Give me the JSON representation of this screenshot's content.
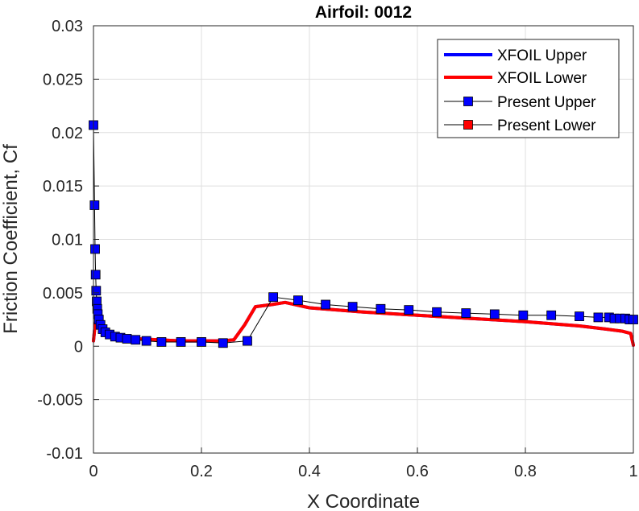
{
  "chart_data": {
    "type": "line",
    "title": "Airfoil: 0012",
    "xlabel": "X Coordinate",
    "ylabel": "Friction Coefficient, Cf",
    "xlim": [
      0,
      1
    ],
    "ylim": [
      -0.01,
      0.03
    ],
    "xticks": [
      0,
      0.2,
      0.4,
      0.6,
      0.8,
      1
    ],
    "xtick_labels": [
      "0",
      "0.2",
      "0.4",
      "0.6",
      "0.8",
      "1"
    ],
    "yticks": [
      -0.01,
      -0.005,
      0,
      0.005,
      0.01,
      0.015,
      0.02,
      0.025,
      0.03
    ],
    "ytick_labels": [
      "-0.01",
      "-0.005",
      "0",
      "0.005",
      "0.01",
      "0.015",
      "0.02",
      "0.025",
      "0.03"
    ],
    "grid": true,
    "legend_position": "top-right",
    "series": [
      {
        "name": "XFOIL Upper",
        "style": "line",
        "color": "#0000FF",
        "x": [
          0,
          0.002,
          0.005,
          0.008,
          0.012,
          0.02,
          0.03,
          0.05,
          0.08,
          0.12,
          0.16,
          0.2,
          0.24,
          0.26,
          0.28,
          0.3,
          0.33,
          0.355,
          0.4,
          0.5,
          0.6,
          0.7,
          0.8,
          0.9,
          0.95,
          0.98,
          0.995,
          1.0
        ],
        "y": [
          0.0005,
          0.0015,
          0.0025,
          0.0024,
          0.002,
          0.0015,
          0.0012,
          0.0009,
          0.0007,
          0.0006,
          0.0005,
          0.0005,
          0.0005,
          0.0006,
          0.002,
          0.0037,
          0.0039,
          0.0041,
          0.0036,
          0.0032,
          0.0029,
          0.0026,
          0.0023,
          0.0019,
          0.0016,
          0.0014,
          0.0012,
          0.0001
        ]
      },
      {
        "name": "XFOIL Lower",
        "style": "line",
        "color": "#FF0000",
        "x": [
          0,
          0.002,
          0.005,
          0.008,
          0.012,
          0.02,
          0.03,
          0.05,
          0.08,
          0.12,
          0.16,
          0.2,
          0.24,
          0.26,
          0.28,
          0.3,
          0.33,
          0.355,
          0.4,
          0.5,
          0.6,
          0.7,
          0.8,
          0.9,
          0.95,
          0.98,
          0.995,
          1.0
        ],
        "y": [
          0.0005,
          0.0015,
          0.0025,
          0.0024,
          0.002,
          0.0015,
          0.0012,
          0.0009,
          0.0007,
          0.0006,
          0.0005,
          0.0005,
          0.0005,
          0.0006,
          0.002,
          0.0037,
          0.0039,
          0.0041,
          0.0036,
          0.0032,
          0.0029,
          0.0026,
          0.0023,
          0.0019,
          0.0016,
          0.0014,
          0.0012,
          0.0001
        ]
      },
      {
        "name": "Present Upper",
        "style": "line-marker",
        "color": "#000000",
        "marker_color": "#0000FF",
        "x": [
          0.0,
          0.002,
          0.003,
          0.004,
          0.005,
          0.006,
          0.007,
          0.008,
          0.01,
          0.013,
          0.017,
          0.022,
          0.03,
          0.04,
          0.05,
          0.062,
          0.078,
          0.098,
          0.126,
          0.162,
          0.2,
          0.24,
          0.285,
          0.333,
          0.379,
          0.43,
          0.48,
          0.532,
          0.584,
          0.636,
          0.69,
          0.743,
          0.796,
          0.848,
          0.9,
          0.935,
          0.955,
          0.965,
          0.975,
          0.985,
          0.993,
          1.0
        ],
        "y": [
          0.0207,
          0.0132,
          0.0091,
          0.0067,
          0.0052,
          0.0042,
          0.0035,
          0.003,
          0.0025,
          0.002,
          0.0016,
          0.0013,
          0.0011,
          0.0009,
          0.0008,
          0.0007,
          0.0006,
          0.0005,
          0.0004,
          0.0004,
          0.0004,
          0.0003,
          0.0005,
          0.0046,
          0.0043,
          0.0039,
          0.0037,
          0.0035,
          0.0034,
          0.0032,
          0.0031,
          0.003,
          0.0029,
          0.0029,
          0.0028,
          0.0027,
          0.0027,
          0.0026,
          0.0026,
          0.0026,
          0.0025,
          0.0025
        ]
      },
      {
        "name": "Present Lower",
        "style": "line-marker",
        "color": "#000000",
        "marker_color": "#FF0000",
        "x": [],
        "y": []
      }
    ]
  }
}
